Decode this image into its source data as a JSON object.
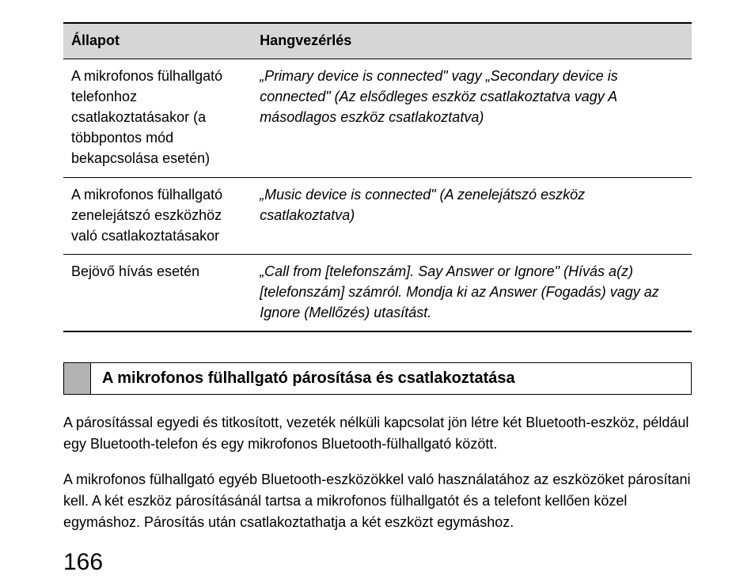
{
  "table": {
    "columns": [
      "Állapot",
      "Hangvezérlés"
    ],
    "rows": [
      {
        "status": "A mikrofonos fülhallgató telefonhoz csatlakoztatásakor (a többpontos mód bekapcsolása esetén)",
        "voice": "„Primary device is connected\" vagy „Secondary device is connected\" (Az elsődleges eszköz csatlakoztatva vagy A másodlagos eszköz csatlakoztatva)"
      },
      {
        "status": "A mikrofonos fülhallgató zenelejátszó eszközhöz való csatlakoztatásakor",
        "voice": "„Music device is connected\" (A zenelejátszó eszköz csatlakoztatva)"
      },
      {
        "status": "Bejövő hívás esetén",
        "voice": "„Call from [telefonszám]. Say Answer or Ignore\" (Hívás a(z) [telefonszám] számról. Mondja ki az Answer (Fogadás) vagy az Ignore (Mellőzés) utasítást."
      }
    ]
  },
  "section_title": "A mikrofonos fülhallgató párosítása és csatlakoztatása",
  "paragraphs": [
    "A párosítással egyedi és titkosított, vezeték nélküli kapcsolat jön létre két Bluetooth-eszköz, például egy Bluetooth-telefon és egy mikrofonos Bluetooth-fülhallgató között.",
    "A mikrofonos fülhallgató egyéb Bluetooth-eszközökkel való használatához az eszközöket párosítani kell. A két eszköz párosításánál tartsa a mikrofonos fülhallgatót és a telefont kellően közel egymáshoz. Párosítás után csatlakoztathatja a két eszközt egymáshoz."
  ],
  "page_number": "166"
}
